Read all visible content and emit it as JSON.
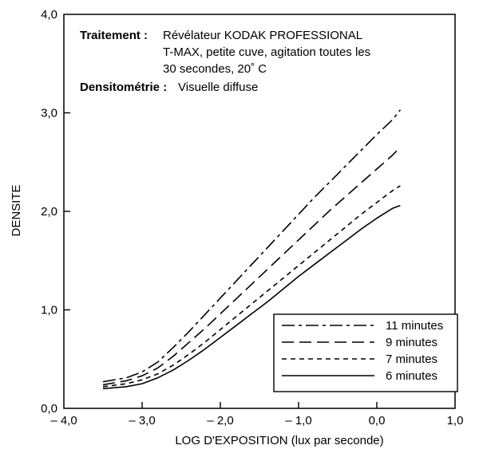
{
  "chart_data": {
    "type": "line",
    "title": "",
    "xlabel": "LOG D'EXPOSITION (lux par seconde)",
    "ylabel": "DENSITE",
    "xlim": [
      -4.0,
      1.0
    ],
    "ylim": [
      0.0,
      4.0
    ],
    "x_ticks": [
      -4.0,
      -3.0,
      -2.0,
      -1.0,
      0.0,
      1.0
    ],
    "x_tick_labels": [
      "– 4,0",
      "– 3,0",
      "– 2,0",
      "– 1,0",
      "0,0",
      "1,0"
    ],
    "y_ticks": [
      0.0,
      1.0,
      2.0,
      3.0,
      4.0
    ],
    "y_tick_labels": [
      "0,0",
      "1,0",
      "2,0",
      "3,0",
      "4,0"
    ],
    "grid": false,
    "legend_position": "bottom-right",
    "annotation": {
      "line1_label": "Traitement :",
      "line1_text": "Révélateur KODAK PROFESSIONAL",
      "line2_text": "T-MAX, petite cuve, agitation toutes les",
      "line3_text": "30 secondes, 20˚ C",
      "line4_label": "Densitométrie :",
      "line4_text": "Visuelle diffuse"
    },
    "series": [
      {
        "name": "11 minutes",
        "style": "dash-dot",
        "x": [
          -3.5,
          -3.2,
          -3.0,
          -2.8,
          -2.6,
          -2.4,
          -2.2,
          -2.0,
          -1.8,
          -1.6,
          -1.4,
          -1.2,
          -1.0,
          -0.8,
          -0.6,
          -0.4,
          -0.2,
          0.0,
          0.2,
          0.3
        ],
        "y": [
          0.27,
          0.31,
          0.37,
          0.47,
          0.62,
          0.78,
          0.95,
          1.12,
          1.29,
          1.46,
          1.63,
          1.8,
          1.97,
          2.14,
          2.3,
          2.46,
          2.62,
          2.78,
          2.93,
          3.03
        ]
      },
      {
        "name": "9 minutes",
        "style": "long-dash",
        "x": [
          -3.5,
          -3.2,
          -3.0,
          -2.8,
          -2.6,
          -2.4,
          -2.2,
          -2.0,
          -1.8,
          -1.6,
          -1.4,
          -1.2,
          -1.0,
          -0.8,
          -0.6,
          -0.4,
          -0.2,
          0.0,
          0.2,
          0.3
        ],
        "y": [
          0.24,
          0.28,
          0.33,
          0.41,
          0.53,
          0.67,
          0.81,
          0.96,
          1.11,
          1.26,
          1.41,
          1.56,
          1.71,
          1.86,
          2.01,
          2.15,
          2.29,
          2.43,
          2.57,
          2.65
        ]
      },
      {
        "name": "7 minutes",
        "style": "short-dash",
        "x": [
          -3.5,
          -3.2,
          -3.0,
          -2.8,
          -2.6,
          -2.4,
          -2.2,
          -2.0,
          -1.8,
          -1.6,
          -1.4,
          -1.2,
          -1.0,
          -0.8,
          -0.6,
          -0.4,
          -0.2,
          0.0,
          0.2,
          0.3
        ],
        "y": [
          0.22,
          0.25,
          0.29,
          0.35,
          0.44,
          0.55,
          0.67,
          0.8,
          0.93,
          1.06,
          1.19,
          1.32,
          1.45,
          1.58,
          1.71,
          1.84,
          1.97,
          2.09,
          2.21,
          2.26
        ]
      },
      {
        "name": "6 minutes",
        "style": "solid",
        "x": [
          -3.5,
          -3.2,
          -3.0,
          -2.8,
          -2.6,
          -2.4,
          -2.2,
          -2.0,
          -1.8,
          -1.6,
          -1.4,
          -1.2,
          -1.0,
          -0.8,
          -0.6,
          -0.4,
          -0.2,
          0.0,
          0.2,
          0.3
        ],
        "y": [
          0.2,
          0.22,
          0.25,
          0.31,
          0.39,
          0.49,
          0.6,
          0.72,
          0.84,
          0.96,
          1.08,
          1.21,
          1.34,
          1.46,
          1.58,
          1.7,
          1.82,
          1.93,
          2.03,
          2.06
        ]
      }
    ]
  }
}
